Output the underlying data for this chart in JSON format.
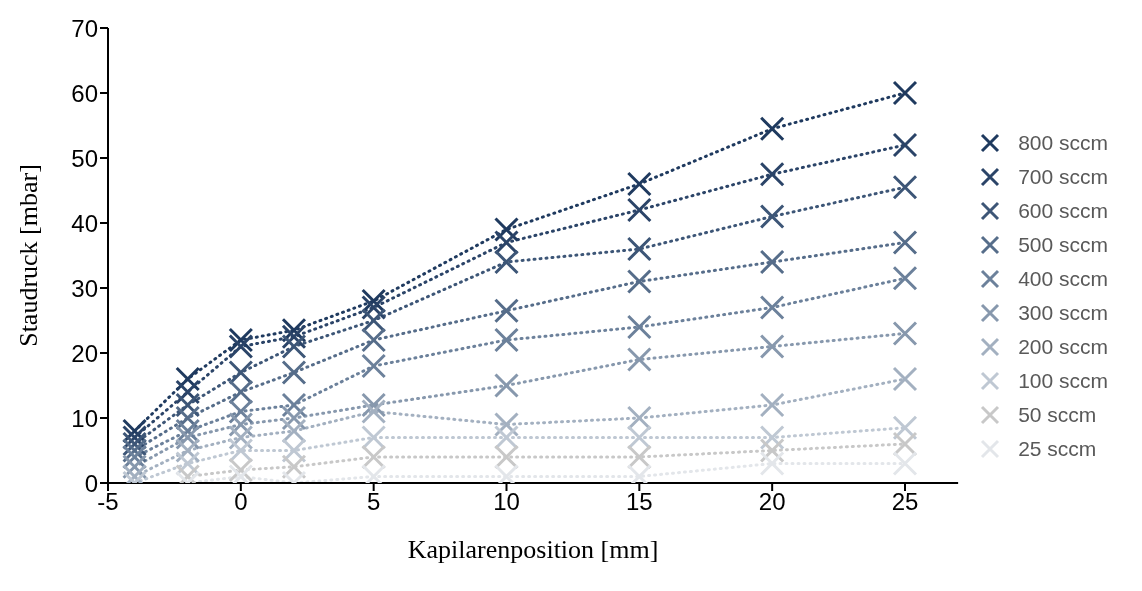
{
  "chart_data": {
    "type": "line",
    "xlabel": "Kapilarenposition [mm]",
    "ylabel": "Staudruck [mbar]",
    "x": [
      -4,
      -2,
      0,
      2,
      5,
      10,
      15,
      20,
      25
    ],
    "xlim": [
      -5,
      27
    ],
    "xticks": [
      -5,
      0,
      5,
      10,
      15,
      20,
      25
    ],
    "ylim": [
      0,
      70
    ],
    "yticks": [
      0,
      10,
      20,
      30,
      40,
      50,
      60,
      70
    ],
    "grid": false,
    "legend": "right",
    "marker": "cross",
    "line_style": "dotted",
    "series": [
      {
        "name": "800 sccm",
        "color": "#1f3a5f",
        "values": [
          8,
          16,
          22,
          23.5,
          28,
          39,
          46,
          54.5,
          60
        ]
      },
      {
        "name": "700 sccm",
        "color": "#2b4468",
        "values": [
          7,
          14,
          21,
          22.5,
          27,
          37,
          42,
          47.5,
          52
        ]
      },
      {
        "name": "600 sccm",
        "color": "#3d5677",
        "values": [
          6,
          12,
          17,
          21,
          25,
          34,
          36,
          41,
          45.5
        ]
      },
      {
        "name": "500 sccm",
        "color": "#566d8a",
        "values": [
          5,
          10,
          14,
          17,
          22,
          26.5,
          31,
          34,
          37
        ]
      },
      {
        "name": "400 sccm",
        "color": "#6c819b",
        "values": [
          4,
          8,
          11,
          12,
          18,
          22,
          24,
          27,
          31.5
        ]
      },
      {
        "name": "300 sccm",
        "color": "#8798ad",
        "values": [
          2.5,
          7,
          9,
          10,
          12,
          15,
          19,
          21,
          23
        ]
      },
      {
        "name": "200 sccm",
        "color": "#a3b0c0",
        "values": [
          1,
          5,
          7,
          8,
          11,
          9,
          10,
          12,
          16
        ]
      },
      {
        "name": "100 sccm",
        "color": "#bfc8d3",
        "values": [
          0,
          3,
          5,
          5,
          7,
          7,
          7,
          7,
          8.5
        ]
      },
      {
        "name": "50 sccm",
        "color": "#c8c8c8",
        "values": [
          null,
          1,
          2,
          2.5,
          4,
          4,
          4,
          5,
          6
        ]
      },
      {
        "name": "25 sccm",
        "color": "#e3e6ea",
        "values": [
          null,
          0,
          1,
          0,
          1,
          1,
          1,
          3,
          3
        ]
      }
    ]
  }
}
